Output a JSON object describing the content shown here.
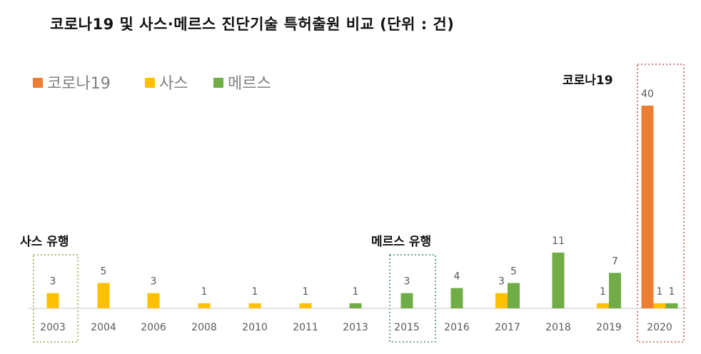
{
  "title": "코로나19 및 사스·메르스 진단기술 특허출원 비교 (단위 : 건)",
  "colors": {
    "covid": "#ed7d31",
    "sars": "#ffc000",
    "mers": "#70ad47",
    "axis": "#d9d9d9",
    "box_sars": "#9aa03c",
    "box_mers": "#2e8b6e",
    "box_covid": "#c0504d"
  },
  "legend": [
    {
      "name": "코로나19",
      "color": "#ed7d31"
    },
    {
      "name": "사스",
      "color": "#ffc000"
    },
    {
      "name": "메르스",
      "color": "#70ad47"
    }
  ],
  "callouts": {
    "sars": "사스 유행",
    "mers": "메르스 유행",
    "covid": "코로나19"
  },
  "chart_data": {
    "type": "bar",
    "categories": [
      "2003",
      "2004",
      "2006",
      "2008",
      "2010",
      "2011",
      "2013",
      "2015",
      "2016",
      "2017",
      "2018",
      "2019",
      "2020"
    ],
    "series": [
      {
        "name": "코로나19",
        "values": [
          null,
          null,
          null,
          null,
          null,
          null,
          null,
          null,
          null,
          null,
          null,
          null,
          40
        ]
      },
      {
        "name": "사스",
        "values": [
          3,
          5,
          3,
          1,
          1,
          1,
          null,
          null,
          null,
          3,
          null,
          1,
          1
        ]
      },
      {
        "name": "메르스",
        "values": [
          null,
          null,
          null,
          null,
          null,
          null,
          1,
          3,
          4,
          5,
          11,
          7,
          1
        ]
      }
    ],
    "highlighted_categories": [
      "2003",
      "2015",
      "2020"
    ]
  }
}
